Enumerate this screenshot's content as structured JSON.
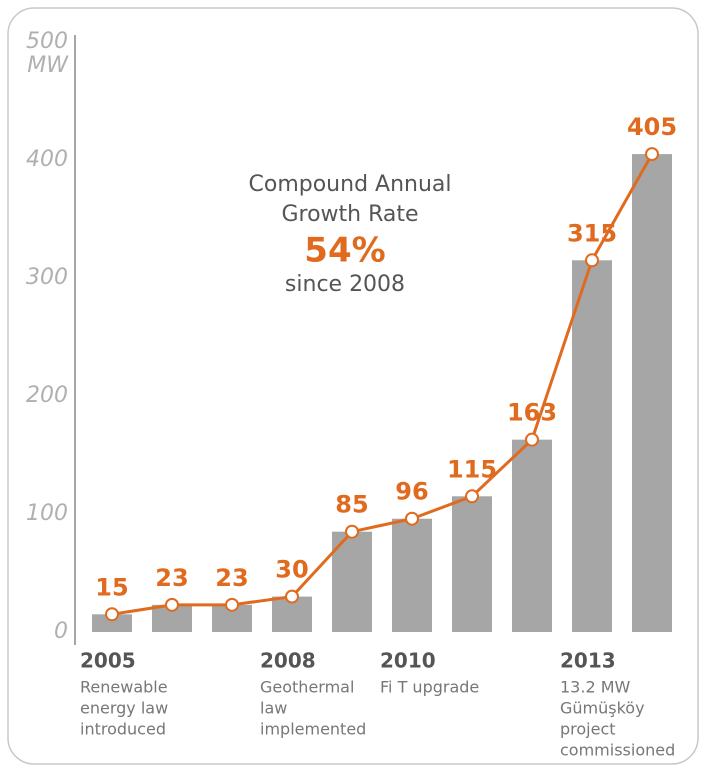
{
  "chart_data": {
    "type": "bar",
    "categories": [
      "2005",
      null,
      null,
      "2008",
      null,
      "2010",
      null,
      null,
      "2013",
      null
    ],
    "category_notes": [
      [
        "Renewable",
        "energy law",
        "introduced"
      ],
      null,
      null,
      [
        "Geothermal",
        "law",
        "implemented"
      ],
      null,
      [
        "Fi T upgrade"
      ],
      null,
      null,
      [
        "13.2 MW",
        "Gümüşköy",
        "project",
        "commissioned"
      ],
      null
    ],
    "values": [
      15,
      23,
      23,
      30,
      85,
      96,
      115,
      163,
      315,
      405
    ],
    "bar_color": "#a6a6a7",
    "line_color": "#e06a1e",
    "ylim": [
      0,
      500
    ],
    "yticks": [
      0,
      100,
      200,
      300,
      400,
      500
    ],
    "y_unit": "MW",
    "annotation": {
      "lines": [
        "Compound Annual",
        "Growth Rate"
      ],
      "highlight": "54%",
      "footer": "since 2008"
    }
  }
}
